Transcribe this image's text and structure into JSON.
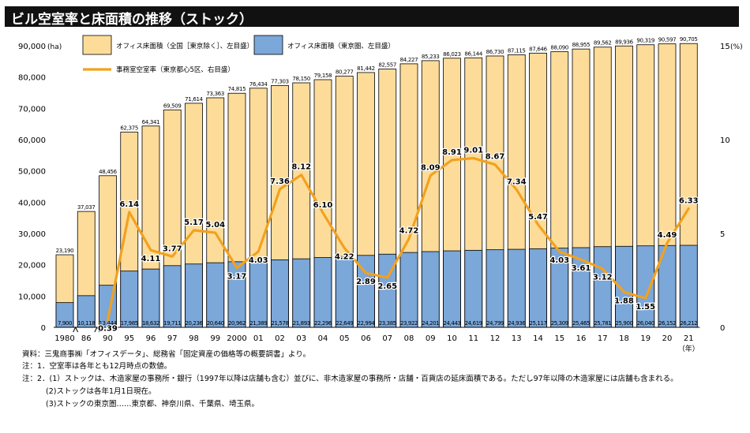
{
  "title": "ビル空室率と床面積の推移（ストック）",
  "chart_data": {
    "type": "bar",
    "title": "ビル空室率と床面積の推移（ストック）",
    "left_axis_unit": "(ha)",
    "right_axis_unit": "(%)",
    "x_unit": "（年）",
    "ylim": [
      0,
      90000
    ],
    "y2lim": [
      0,
      15
    ],
    "left_ticks": [
      "90,000",
      "80,000",
      "70,000",
      "60,000",
      "50,000",
      "40,000",
      "30,000",
      "20,000",
      "10,000",
      "0"
    ],
    "right_ticks": [
      "15",
      "10",
      "5",
      "0"
    ],
    "categories": [
      "1980",
      "86",
      "90",
      "95",
      "96",
      "97",
      "98",
      "99",
      "2000",
      "01",
      "02",
      "03",
      "04",
      "05",
      "06",
      "07",
      "08",
      "09",
      "10",
      "11",
      "12",
      "13",
      "14",
      "15",
      "16",
      "17",
      "18",
      "19",
      "20",
      "21"
    ],
    "series": [
      {
        "name": "オフィス床面積（全国［東京除く］、左目盛）",
        "kind": "bar",
        "color": "#fddc9a",
        "values": [
          23190,
          37037,
          48456,
          62375,
          64341,
          69509,
          71614,
          73363,
          74815,
          76434,
          77303,
          78150,
          79158,
          80277,
          81442,
          82557,
          84227,
          85233,
          86023,
          86144,
          86730,
          87115,
          87646,
          88090,
          88955,
          89562,
          89936,
          90319,
          90597,
          90705
        ],
        "labels": [
          "23,190",
          "37,037",
          "48,456",
          "62,375",
          "64,341",
          "69,509",
          "71,614",
          "73,363",
          "74,815",
          "76,434",
          "77,303",
          "78,150",
          "79,158",
          "80,277",
          "81,442",
          "82,557",
          "84,227",
          "85,233",
          "86,023",
          "86,144",
          "86,730",
          "87,115",
          "87,646",
          "88,090",
          "88,955",
          "89,562",
          "89,936",
          "90,319",
          "90,597",
          "90,705"
        ]
      },
      {
        "name": "オフィス床面積（東京圏、左目盛）",
        "kind": "bar",
        "color": "#7ba7d9",
        "values": [
          7900,
          10118,
          13444,
          17985,
          18632,
          19711,
          20236,
          20640,
          20962,
          21389,
          21578,
          21893,
          22296,
          22649,
          22994,
          23385,
          23922,
          24201,
          24443,
          24619,
          24799,
          24936,
          25117,
          25309,
          25465,
          25781,
          25900,
          26040,
          26152,
          26212
        ],
        "labels": [
          "7,900",
          "10,118",
          "13,444",
          "17,985",
          "18,632",
          "19,711",
          "20,236",
          "20,640",
          "20,962",
          "21,389",
          "21,578",
          "21,893",
          "22,296",
          "22,649",
          "22,994",
          "23,385",
          "23,922",
          "24,201",
          "24,443",
          "24,619",
          "24,799",
          "24,936",
          "25,117",
          "25,309",
          "25,465",
          "25,781",
          "25,900",
          "26,040",
          "26,152",
          "26,212"
        ]
      },
      {
        "name": "事務室空室率（東京都心5区、右目盛）",
        "kind": "line",
        "color": "#f2a11e",
        "values": [
          null,
          null,
          0.39,
          6.14,
          4.11,
          3.77,
          5.17,
          5.04,
          3.17,
          4.03,
          7.36,
          8.12,
          6.1,
          4.22,
          2.89,
          2.65,
          4.72,
          8.09,
          8.91,
          9.01,
          8.67,
          7.34,
          5.47,
          4.03,
          3.61,
          3.12,
          1.88,
          1.55,
          4.49,
          6.33
        ],
        "labels": [
          "",
          "",
          "0.39",
          "6.14",
          "4.11",
          "3.77",
          "5.17",
          "5.04",
          "3.17",
          "4.03",
          "7.36",
          "8.12",
          "6.10",
          "4.22",
          "2.89",
          "2.65",
          "4.72",
          "8.09",
          "8.91",
          "9.01",
          "8.67",
          "7.34",
          "5.47",
          "4.03",
          "3.61",
          "3.12",
          "1.88",
          "1.55",
          "4.49",
          "6.33"
        ]
      }
    ]
  },
  "notes": [
    "資料：三鬼商事㈱「オフィスデータ」、総務省「固定資産の価格等の概要調書」より。",
    "注：1．空室率は各年とも12月時点の数値。",
    "注：2．(1）ストックは、木造家屋の事務所・銀行（1997年以降は店舗も含む）並びに、非木造家屋の事務所・店舗・百貨店の延床面積である。ただし97年以降の木造家屋には店舗も含まれる。",
    "(2)ストックは各年1月1日現在。",
    "(3)ストックの東京圏……東京都、神奈川県、千葉県、埼玉県。"
  ]
}
